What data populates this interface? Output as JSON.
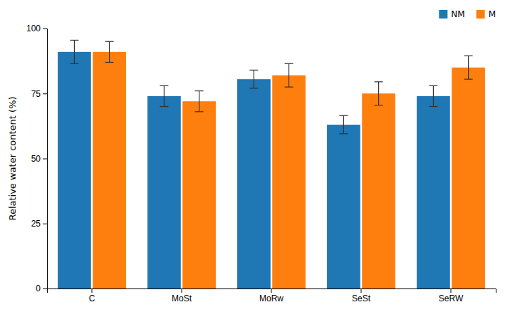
{
  "chart_data": {
    "type": "bar",
    "categories": [
      "C",
      "MoSt",
      "MoRw",
      "SeSt",
      "SeRW"
    ],
    "series": [
      {
        "name": "NM",
        "values": [
          91.0,
          74.0,
          80.5,
          63.0,
          74.0
        ],
        "errors": [
          4.5,
          4.0,
          3.5,
          3.5,
          4.0
        ]
      },
      {
        "name": "M",
        "values": [
          91.0,
          72.0,
          82.0,
          75.0,
          85.0
        ],
        "errors": [
          4.0,
          4.0,
          4.5,
          4.5,
          4.5
        ]
      }
    ],
    "ylabel": "Relative water content  (%)",
    "ylim": [
      0,
      100
    ],
    "yticks": [
      0,
      25,
      50,
      75,
      100
    ],
    "grid": false,
    "legend": "upper right"
  }
}
